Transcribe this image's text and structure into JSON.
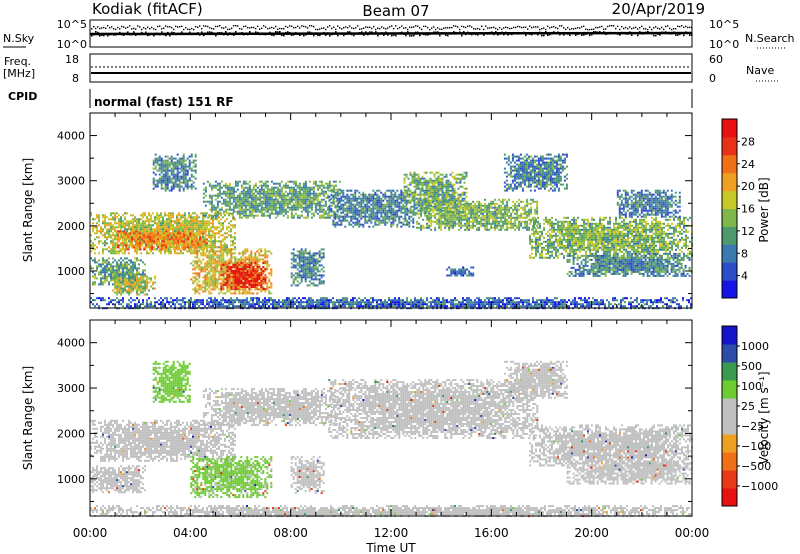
{
  "header": {
    "station": "Kodiak (fitACF)",
    "beam": "Beam 07",
    "date": "20/Apr/2019"
  },
  "strips": {
    "nsky_label": "N.Sky",
    "nsky_ticks": [
      "10^5",
      "10^0"
    ],
    "nsearch_label": "N.Search",
    "nsearch_ticks": [
      "10^5",
      "10^0"
    ],
    "freq_label_line1": "Freq.",
    "freq_label_line2": "[MHz]",
    "freq_ticks": [
      "18",
      "8"
    ],
    "nave_label": "Nave",
    "nave_ticks": [
      "60",
      "0"
    ],
    "cpid_label": "CPID",
    "cpid_value": "normal (fast) 151 RF"
  },
  "chart_data": [
    {
      "type": "heatmap",
      "panel": "power",
      "ylabel": "Slant Range [km]",
      "xlabel": "Time UT",
      "xlim": [
        0,
        24
      ],
      "ylim": [
        180,
        4500
      ],
      "x_tick_labels": [
        "00:00",
        "04:00",
        "08:00",
        "12:00",
        "16:00",
        "20:00",
        "00:00"
      ],
      "y_tick_labels": [
        "1000",
        "2000",
        "3000",
        "4000"
      ],
      "colorbar": {
        "label": "Power [dB]",
        "ticks": [
          "28",
          "24",
          "20",
          "16",
          "12",
          "8",
          "4"
        ],
        "range": [
          0,
          30
        ],
        "colors": [
          "#1414e6",
          "#2d4cc8",
          "#3a7ab0",
          "#4f9a6c",
          "#7fb84a",
          "#c8c828",
          "#f0a020",
          "#f07018",
          "#e83218",
          "#e81010"
        ]
      },
      "regions": [
        {
          "t0": 0.0,
          "t1": 5.8,
          "r0": 1400,
          "r1": 2300,
          "power": 16
        },
        {
          "t0": 1.0,
          "t1": 4.6,
          "r0": 1500,
          "r1": 1900,
          "power": 21
        },
        {
          "t0": 0.0,
          "t1": 2.2,
          "r0": 700,
          "r1": 1300,
          "power": 11
        },
        {
          "t0": 0.8,
          "t1": 2.6,
          "r0": 500,
          "r1": 900,
          "power": 15
        },
        {
          "t0": 4.0,
          "t1": 7.2,
          "r0": 500,
          "r1": 1500,
          "power": 18
        },
        {
          "t0": 5.2,
          "t1": 7.0,
          "r0": 600,
          "r1": 1200,
          "power": 27
        },
        {
          "t0": 2.5,
          "t1": 4.2,
          "r0": 2800,
          "r1": 3600,
          "power": 9
        },
        {
          "t0": 4.5,
          "t1": 10.0,
          "r0": 2200,
          "r1": 3000,
          "power": 11
        },
        {
          "t0": 8.0,
          "t1": 9.3,
          "r0": 700,
          "r1": 1500,
          "power": 9
        },
        {
          "t0": 9.5,
          "t1": 13.0,
          "r0": 2000,
          "r1": 2800,
          "power": 8
        },
        {
          "t0": 12.5,
          "t1": 15.0,
          "r0": 2300,
          "r1": 3200,
          "power": 12
        },
        {
          "t0": 13.0,
          "t1": 17.8,
          "r0": 1900,
          "r1": 2600,
          "power": 13
        },
        {
          "t0": 14.2,
          "t1": 15.3,
          "r0": 900,
          "r1": 1100,
          "power": 7
        },
        {
          "t0": 16.5,
          "t1": 19.0,
          "r0": 2800,
          "r1": 3600,
          "power": 8
        },
        {
          "t0": 17.5,
          "t1": 24.0,
          "r0": 1300,
          "r1": 2200,
          "power": 13
        },
        {
          "t0": 19.0,
          "t1": 24.0,
          "r0": 900,
          "r1": 1400,
          "power": 9
        },
        {
          "t0": 21.0,
          "t1": 23.5,
          "r0": 2200,
          "r1": 2800,
          "power": 8
        },
        {
          "t0": 0.0,
          "t1": 24.0,
          "r0": 180,
          "r1": 420,
          "power": 6
        }
      ]
    },
    {
      "type": "heatmap",
      "panel": "velocity",
      "ylabel": "Slant Range [km]",
      "xlabel": "Time UT",
      "xlim": [
        0,
        24
      ],
      "ylim": [
        180,
        4500
      ],
      "x_tick_labels": [
        "00:00",
        "04:00",
        "08:00",
        "12:00",
        "16:00",
        "20:00",
        "00:00"
      ],
      "y_tick_labels": [
        "1000",
        "2000",
        "3000",
        "4000"
      ],
      "colorbar": {
        "label": "Velocity [m s⁻¹]",
        "ticks": [
          "1000",
          "500",
          "100",
          "25",
          "−25",
          "−100",
          "−500",
          "−1000"
        ],
        "range": [
          -1200,
          1200
        ],
        "colors": [
          "#e81010",
          "#e83a18",
          "#f07018",
          "#f0a020",
          "#c0c0c0",
          "#c0c0c0",
          "#6ccc30",
          "#3a9a50",
          "#2d4ca8",
          "#1414c8"
        ]
      },
      "regions": [
        {
          "t0": 0.0,
          "t1": 5.8,
          "r0": 1400,
          "r1": 2300,
          "vel": 0
        },
        {
          "t0": 0.0,
          "t1": 2.2,
          "r0": 700,
          "r1": 1300,
          "vel": 0
        },
        {
          "t0": 4.0,
          "t1": 7.2,
          "r0": 600,
          "r1": 1500,
          "vel": 260
        },
        {
          "t0": 2.5,
          "t1": 4.0,
          "r0": 2700,
          "r1": 3600,
          "vel": 300
        },
        {
          "t0": 4.5,
          "t1": 10.0,
          "r0": 2200,
          "r1": 3000,
          "vel": 0
        },
        {
          "t0": 8.0,
          "t1": 9.3,
          "r0": 700,
          "r1": 1500,
          "vel": 0
        },
        {
          "t0": 9.5,
          "t1": 17.8,
          "r0": 1900,
          "r1": 3200,
          "vel": 0
        },
        {
          "t0": 16.5,
          "t1": 19.0,
          "r0": 2800,
          "r1": 3600,
          "vel": 0
        },
        {
          "t0": 17.5,
          "t1": 24.0,
          "r0": 1300,
          "r1": 2200,
          "vel": 0
        },
        {
          "t0": 19.0,
          "t1": 24.0,
          "r0": 900,
          "r1": 1400,
          "vel": 0
        },
        {
          "t0": 0.0,
          "t1": 24.0,
          "r0": 180,
          "r1": 420,
          "vel": 0
        }
      ]
    }
  ]
}
